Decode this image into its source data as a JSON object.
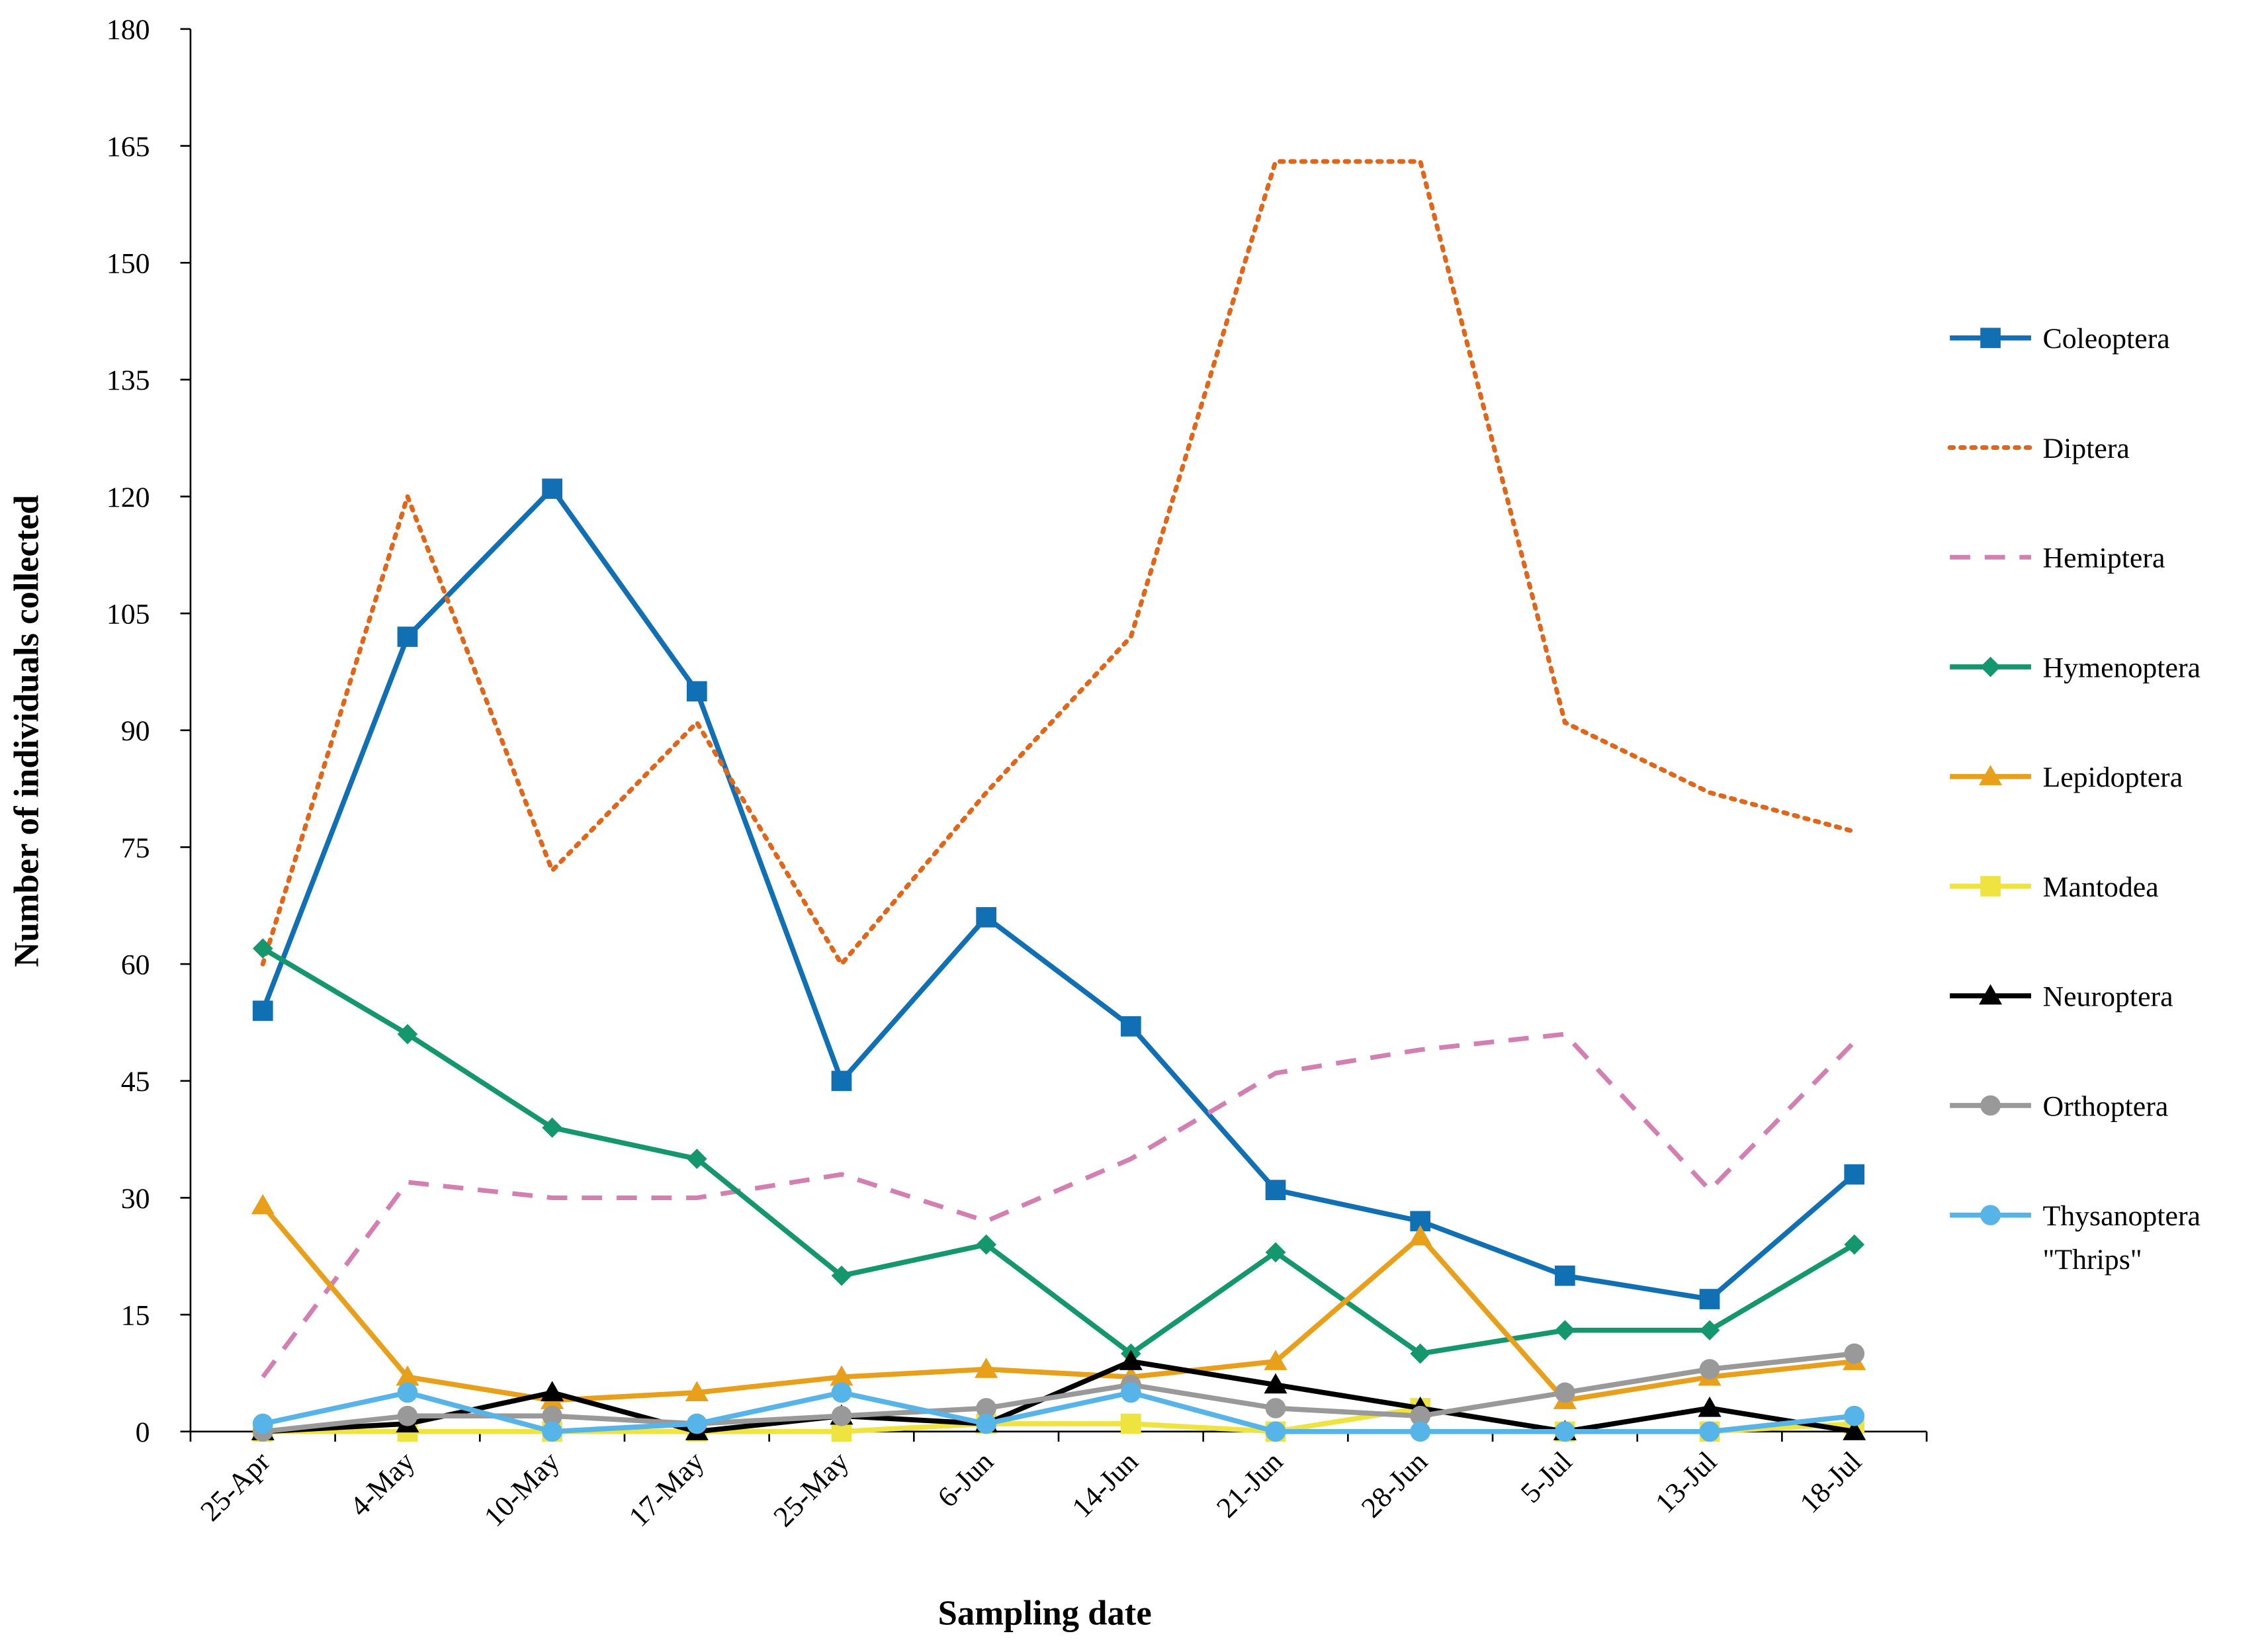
{
  "chart_data": {
    "type": "line",
    "x_label": "Sampling date",
    "y_label": "Number of individuals collected",
    "categories": [
      "25-Apr",
      "4-May",
      "10-May",
      "17-May",
      "25-May",
      "6-Jun",
      "14-Jun",
      "21-Jun",
      "28-Jun",
      "5-Jul",
      "13-Jul",
      "18-Jul"
    ],
    "ylim": [
      0,
      180
    ],
    "yticks": [
      0,
      15,
      30,
      45,
      60,
      75,
      90,
      105,
      120,
      135,
      150,
      165,
      180
    ],
    "legend": "right",
    "series": [
      {
        "name": "Coleoptera",
        "color": "#1170b4",
        "marker": "square",
        "dash": "solid",
        "values": [
          54,
          102,
          121,
          95,
          45,
          66,
          52,
          31,
          27,
          20,
          17,
          33
        ]
      },
      {
        "name": "Diptera",
        "color": "#e0661a",
        "marker": "none",
        "dash": "dotted",
        "values": [
          60,
          120,
          72,
          91,
          60,
          82,
          102,
          163,
          163,
          91,
          82,
          77
        ]
      },
      {
        "name": "Hemiptera",
        "color": "#d47fb2",
        "marker": "none",
        "dash": "dashed",
        "values": [
          7,
          32,
          30,
          30,
          33,
          27,
          35,
          46,
          49,
          51,
          31,
          50
        ]
      },
      {
        "name": "Hymenoptera",
        "color": "#14976c",
        "marker": "diamond",
        "dash": "solid",
        "values": [
          62,
          51,
          39,
          35,
          20,
          24,
          10,
          23,
          10,
          13,
          13,
          24
        ]
      },
      {
        "name": "Lepidoptera",
        "color": "#e8a01a",
        "marker": "triangle",
        "dash": "solid",
        "values": [
          29,
          7,
          4,
          5,
          7,
          8,
          7,
          9,
          25,
          4,
          7,
          9
        ]
      },
      {
        "name": "Mantodea",
        "color": "#efe33f",
        "marker": "square",
        "dash": "solid",
        "values": [
          0,
          0,
          0,
          0,
          0,
          1,
          1,
          0,
          3,
          0,
          0,
          1
        ]
      },
      {
        "name": "Neuroptera",
        "color": "#000000",
        "marker": "triangle",
        "dash": "solid",
        "values": [
          0,
          1,
          5,
          0,
          2,
          1,
          9,
          6,
          3,
          0,
          3,
          0
        ]
      },
      {
        "name": "Orthoptera",
        "color": "#999999",
        "marker": "circle",
        "dash": "solid",
        "values": [
          0,
          2,
          2,
          1,
          2,
          3,
          6,
          3,
          2,
          5,
          8,
          10
        ]
      },
      {
        "name": "Thysanoptera \"Thrips\"",
        "color": "#56b4e9",
        "marker": "circle",
        "dash": "solid",
        "values": [
          1,
          5,
          0,
          1,
          5,
          1,
          5,
          0,
          0,
          0,
          0,
          2
        ]
      }
    ]
  }
}
